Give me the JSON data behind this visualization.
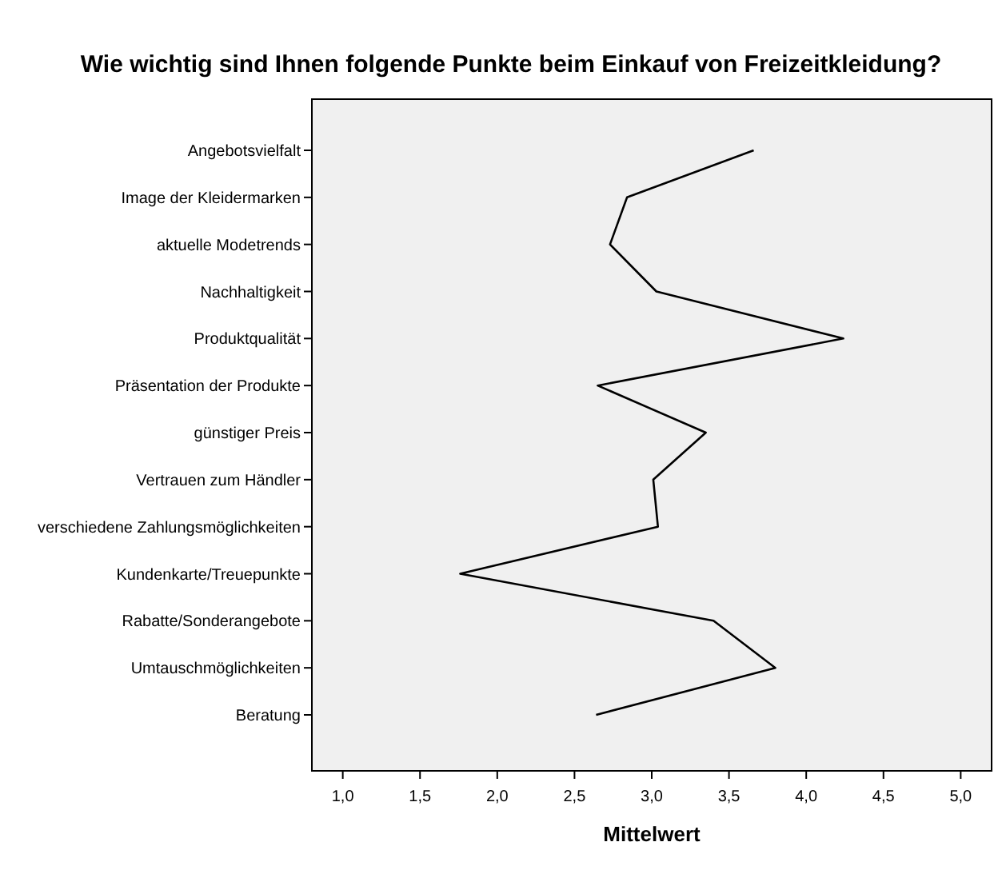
{
  "chart_data": {
    "type": "line",
    "orientation": "horizontal",
    "title": "Wie wichtig sind Ihnen folgende Punkte beim Einkauf von Freizeitkleidung?",
    "xlabel": "Mittelwert",
    "categories": [
      "Angebotsvielfalt",
      "Image der Kleidermarken",
      "aktuelle Modetrends",
      "Nachhaltigkeit",
      "Produktqualität",
      "Präsentation der Produkte",
      "günstiger Preis",
      "Vertrauen zum Händler",
      "verschiedene Zahlungsmöglichkeiten",
      "Kundenkarte/Treuepunkte",
      "Rabatte/Sonderangebote",
      "Umtauschmöglichkeiten",
      "Beratung"
    ],
    "series": [
      {
        "color": "#000000",
        "values": [
          3.66,
          2.84,
          2.73,
          3.03,
          4.24,
          2.65,
          3.35,
          3.01,
          3.04,
          1.76,
          3.4,
          3.8,
          2.64
        ]
      }
    ],
    "xlim": [
      0.8,
      5.2
    ],
    "xticks": [
      {
        "value": 1,
        "label": "1,0"
      },
      {
        "value": 1.5,
        "label": "1,5"
      },
      {
        "value": 2,
        "label": "2,0"
      },
      {
        "value": 2.5,
        "label": "2,5"
      },
      {
        "value": 3,
        "label": "3,0"
      },
      {
        "value": 3.5,
        "label": "3,5"
      },
      {
        "value": 4,
        "label": "4,0"
      },
      {
        "value": 4.5,
        "label": "4,5"
      },
      {
        "value": 5,
        "label": "5,0"
      }
    ],
    "grid": false,
    "marker": "none",
    "line_style": "solid"
  }
}
